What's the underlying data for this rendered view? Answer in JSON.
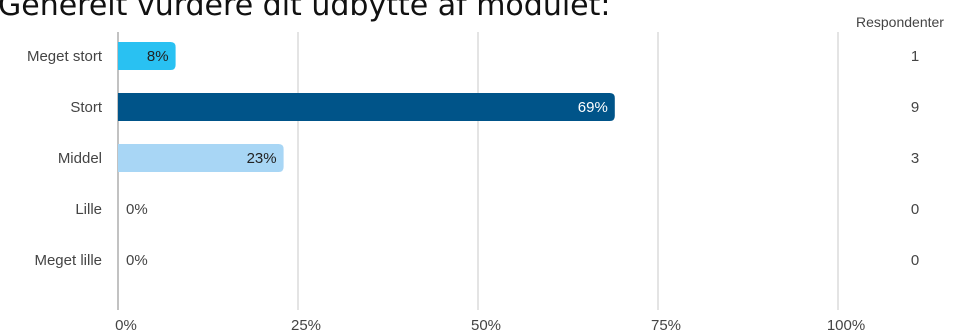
{
  "title": "Generelt vurdere dit udbytte af modulet:",
  "respondents_header": "Respondenter",
  "chart_data": {
    "type": "bar",
    "orientation": "horizontal",
    "categories": [
      "Meget stort",
      "Stort",
      "Middel",
      "Lille",
      "Meget lille"
    ],
    "values": [
      8,
      69,
      23,
      0,
      0
    ],
    "value_labels": [
      "8%",
      "69%",
      "23%",
      "0%",
      "0%"
    ],
    "respondents": [
      1,
      9,
      3,
      0,
      0
    ],
    "xlim": [
      0,
      100
    ],
    "xticks": [
      0,
      25,
      50,
      75,
      100
    ],
    "xtick_labels": [
      "0%",
      "25%",
      "50%",
      "75%",
      "100%"
    ],
    "grid": true,
    "colors": [
      "#29c1f2",
      "#005489",
      "#a8d6f5",
      "#a8d6f5",
      "#a8d6f5"
    ],
    "label_colors": [
      "#222222",
      "#ffffff",
      "#222222",
      "#444444",
      "#444444"
    ]
  }
}
